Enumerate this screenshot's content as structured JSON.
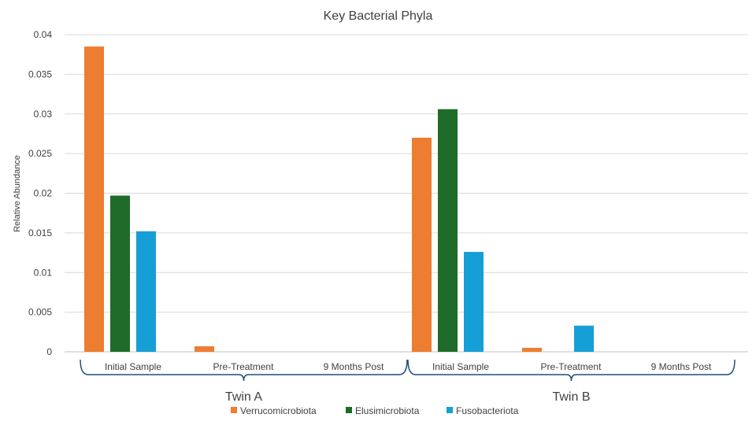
{
  "chart_data": {
    "type": "bar",
    "title": "Key Bacterial Phyla",
    "ylabel": "Relative Abundance",
    "xlabel": "",
    "ylim": [
      0,
      0.04
    ],
    "yticks": [
      "0",
      "0.005",
      "0.01",
      "0.015",
      "0.02",
      "0.025",
      "0.03",
      "0.035",
      "0.04"
    ],
    "grid": true,
    "legend_position": "bottom",
    "groups": [
      {
        "name": "Twin A",
        "categories": [
          "Initial Sample",
          "Pre-Treatment",
          "9 Months Post"
        ]
      },
      {
        "name": "Twin B",
        "categories": [
          "Initial Sample",
          "Pre-Treatment",
          "9 Months Post"
        ]
      }
    ],
    "series": [
      {
        "name": "Verrucomicrobiota",
        "color": "#ed7d31",
        "values": [
          0.0385,
          0.0007,
          0,
          0.027,
          0.0005,
          0
        ]
      },
      {
        "name": "Elusimicrobiota",
        "color": "#1e6b2a",
        "values": [
          0.0197,
          0,
          0,
          0.0306,
          0,
          0
        ]
      },
      {
        "name": "Fusobacteriota",
        "color": "#169fd6",
        "values": [
          0.0152,
          0,
          0,
          0.0126,
          0.0033,
          0
        ]
      }
    ]
  }
}
